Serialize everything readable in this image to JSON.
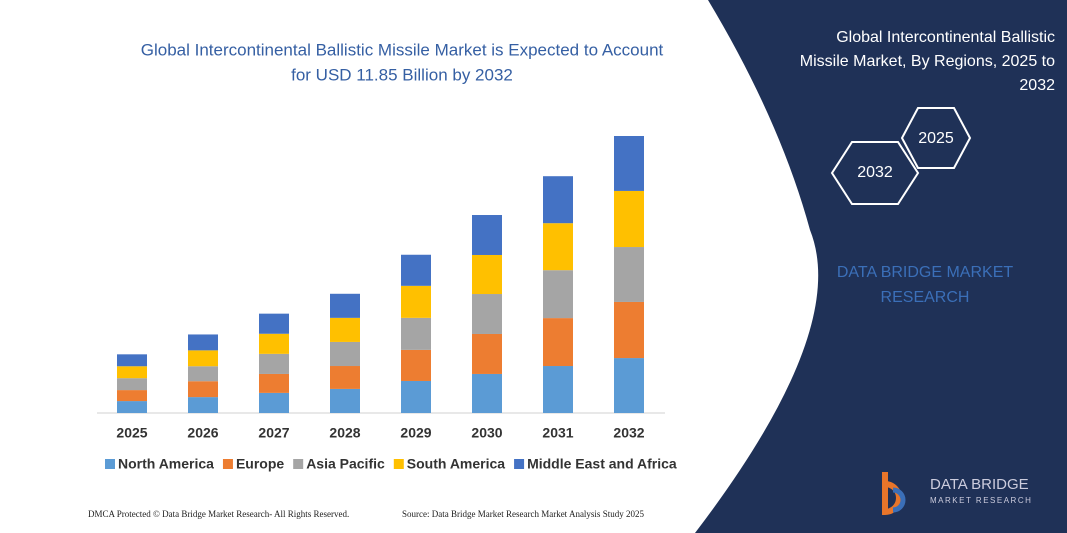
{
  "chart_data": {
    "type": "stacked-bar",
    "title": [
      "Global Intercontinental Ballistic Missile Market is Expected to Account",
      "for USD 11.85 Billion by 2032"
    ],
    "categories": [
      "2025",
      "2026",
      "2027",
      "2028",
      "2029",
      "2030",
      "2031",
      "2032"
    ],
    "series": [
      {
        "name": "North America",
        "color": "#5b9bd5",
        "values": [
          0.51,
          0.68,
          0.86,
          1.03,
          1.37,
          1.67,
          2.01,
          2.35
        ]
      },
      {
        "name": "Europe",
        "color": "#ed7d31",
        "values": [
          0.47,
          0.68,
          0.81,
          0.98,
          1.33,
          1.71,
          2.05,
          2.4
        ]
      },
      {
        "name": "Asia Pacific",
        "color": "#a5a5a5",
        "values": [
          0.51,
          0.64,
          0.86,
          1.03,
          1.37,
          1.71,
          2.05,
          2.35
        ]
      },
      {
        "name": "South America",
        "color": "#ffc000",
        "values": [
          0.51,
          0.68,
          0.86,
          1.03,
          1.37,
          1.67,
          2.01,
          2.4
        ]
      },
      {
        "name": "Middle East and Africa",
        "color": "#4472c4",
        "values": [
          0.51,
          0.68,
          0.86,
          1.03,
          1.33,
          1.71,
          2.01,
          2.35
        ]
      }
    ]
  },
  "panel": {
    "title": [
      "Global Intercontinental Ballistic",
      "Missile Market, By Regions, 2025 to",
      "2032"
    ],
    "hex_back": "2025",
    "hex_front": "2032",
    "brand": [
      "DATA BRIDGE MARKET",
      "RESEARCH"
    ],
    "logo": [
      "DATA BRIDGE",
      "MARKET RESEARCH"
    ]
  },
  "footer": {
    "left": "DMCA Protected © Data Bridge Market Research- All Rights Reserved.",
    "right": "Source: Data Bridge Market Research Market Analysis Study 2025"
  }
}
